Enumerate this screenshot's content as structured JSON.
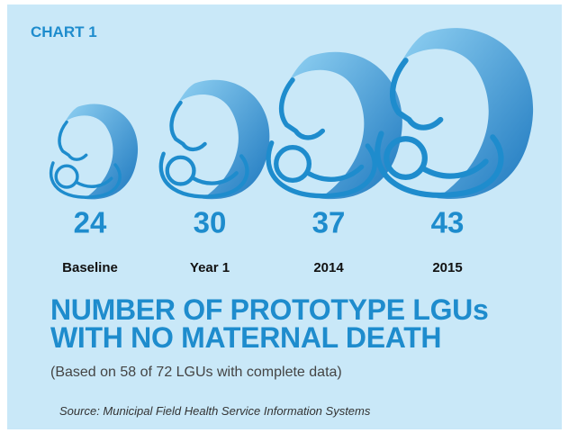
{
  "chart_data": {
    "type": "pictograph",
    "label": "CHART 1",
    "title": "NUMBER OF PROTOTYPE LGUs WITH NO MATERNAL DEATH",
    "subtitle": "(Based on 58 of 72 LGUs with complete data)",
    "source": "Source: Municipal Field Health Service Information Systems",
    "categories": [
      "Baseline",
      "Year 1",
      "2014",
      "2015"
    ],
    "values": [
      24,
      30,
      37,
      43
    ],
    "color": "#1e8ccd"
  }
}
